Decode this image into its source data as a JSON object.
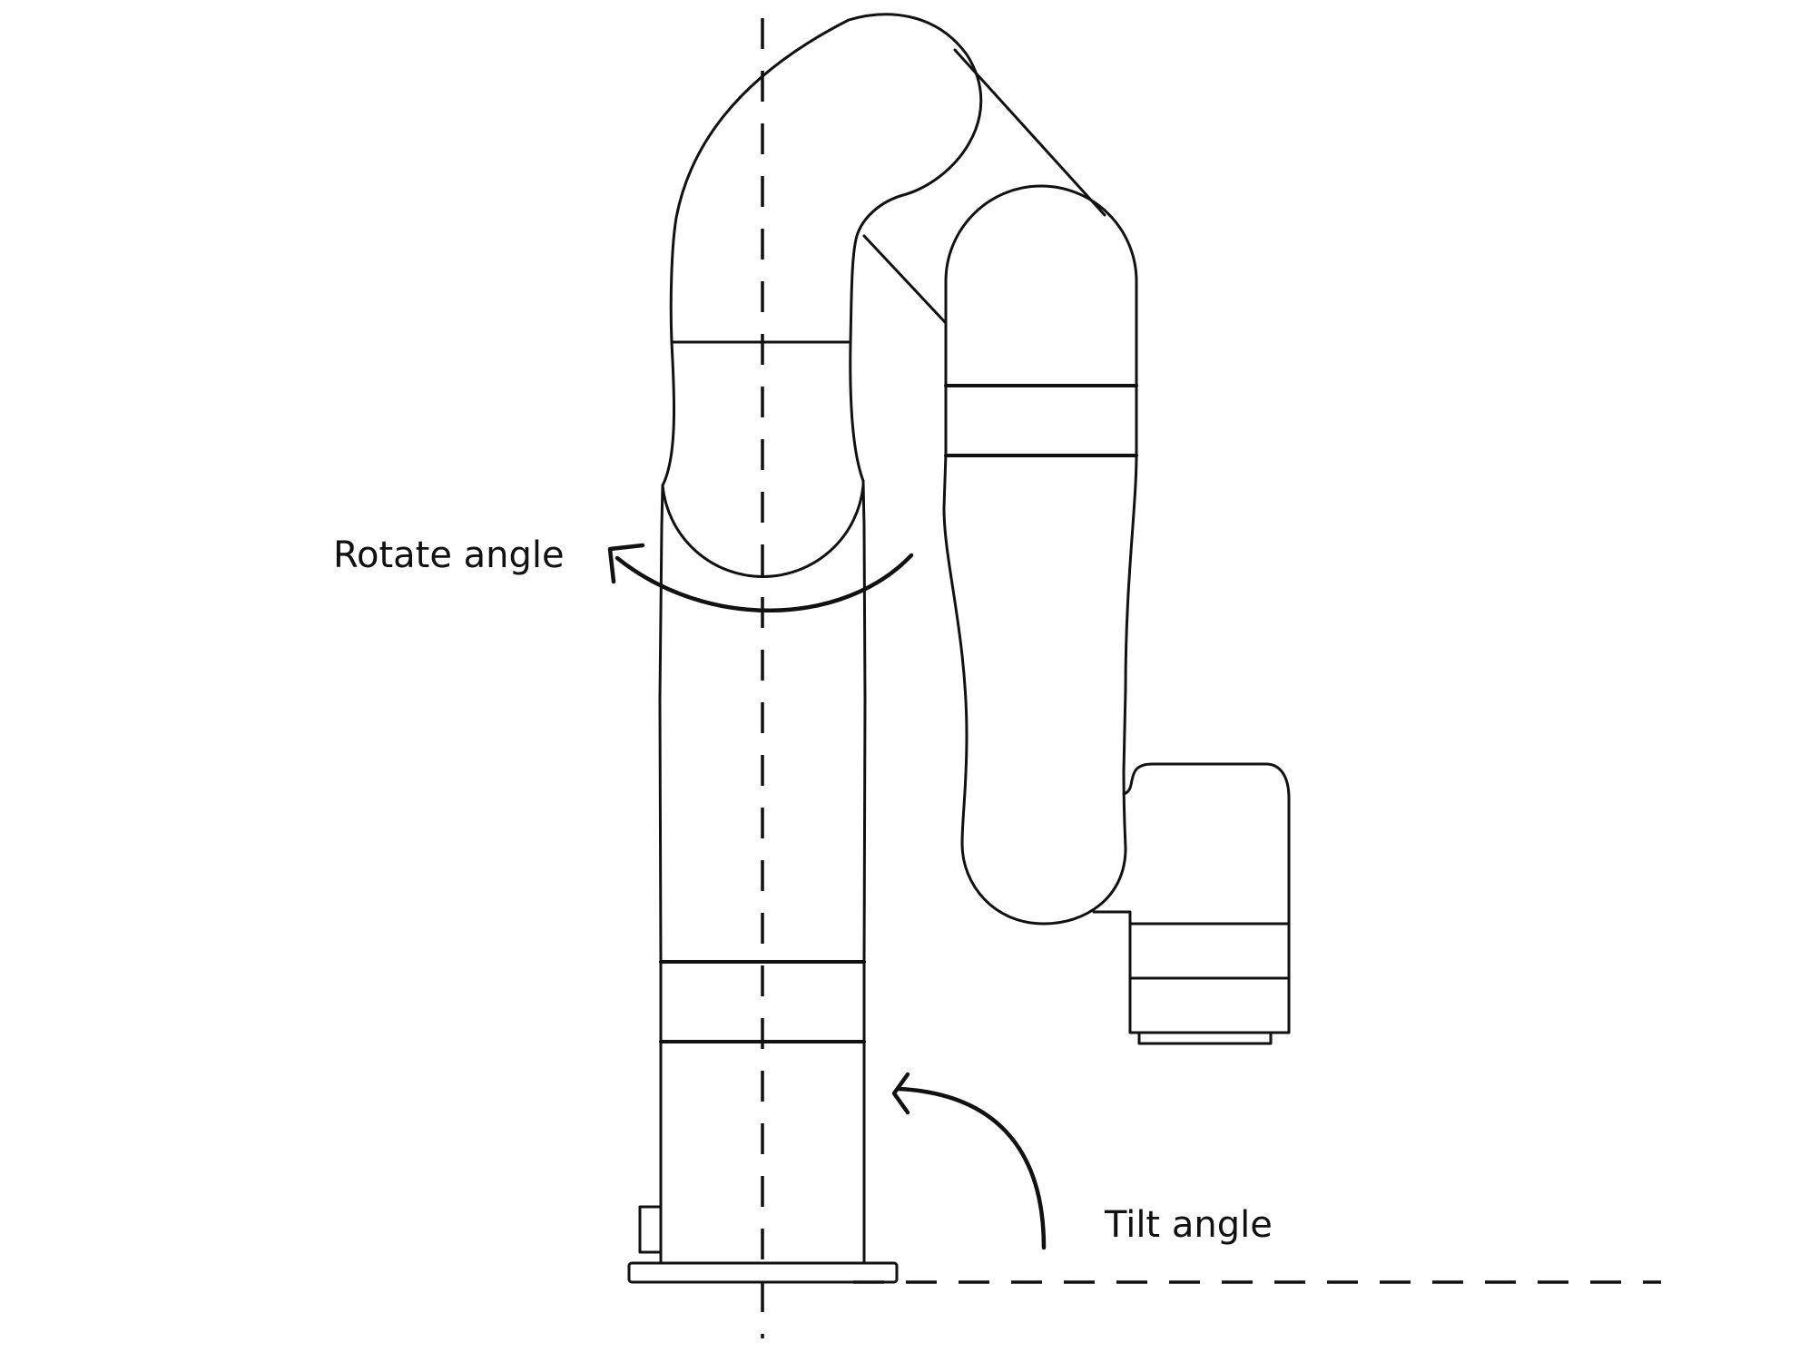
{
  "diagram": {
    "labels": {
      "rotate": "Rotate angle",
      "tilt": "Tilt angle"
    },
    "colors": {
      "stroke": "#111111",
      "background": "#ffffff"
    }
  }
}
